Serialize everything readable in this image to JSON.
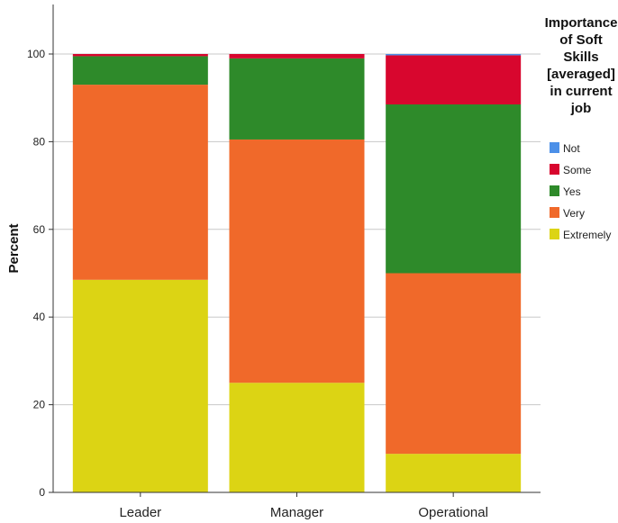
{
  "chart_data": {
    "type": "bar",
    "stacked": true,
    "categories": [
      "Leader",
      "Manager",
      "Operational"
    ],
    "ylabel": "Percent",
    "xlabel": "",
    "ylim": [
      0,
      100
    ],
    "yticks": [
      0,
      20,
      40,
      60,
      80,
      100
    ],
    "grid": true,
    "legend": {
      "title_lines": [
        "Importance",
        "of Soft",
        "Skills",
        "[averaged]",
        "in current",
        "job"
      ],
      "placement": "right"
    },
    "series": [
      {
        "name": "Extremely",
        "color": "#dcd414",
        "values": [
          48.5,
          25.0,
          8.8
        ]
      },
      {
        "name": "Very",
        "color": "#f0692a",
        "values": [
          44.5,
          55.5,
          41.2
        ]
      },
      {
        "name": "Yes",
        "color": "#2e8a2a",
        "values": [
          6.5,
          18.5,
          38.5
        ]
      },
      {
        "name": "Some",
        "color": "#d8062e",
        "values": [
          0.5,
          1.0,
          11.2
        ]
      },
      {
        "name": "Not",
        "color": "#4c90e8",
        "values": [
          0.0,
          0.0,
          0.3
        ]
      }
    ],
    "legend_order": [
      "Not",
      "Some",
      "Yes",
      "Very",
      "Extremely"
    ]
  }
}
